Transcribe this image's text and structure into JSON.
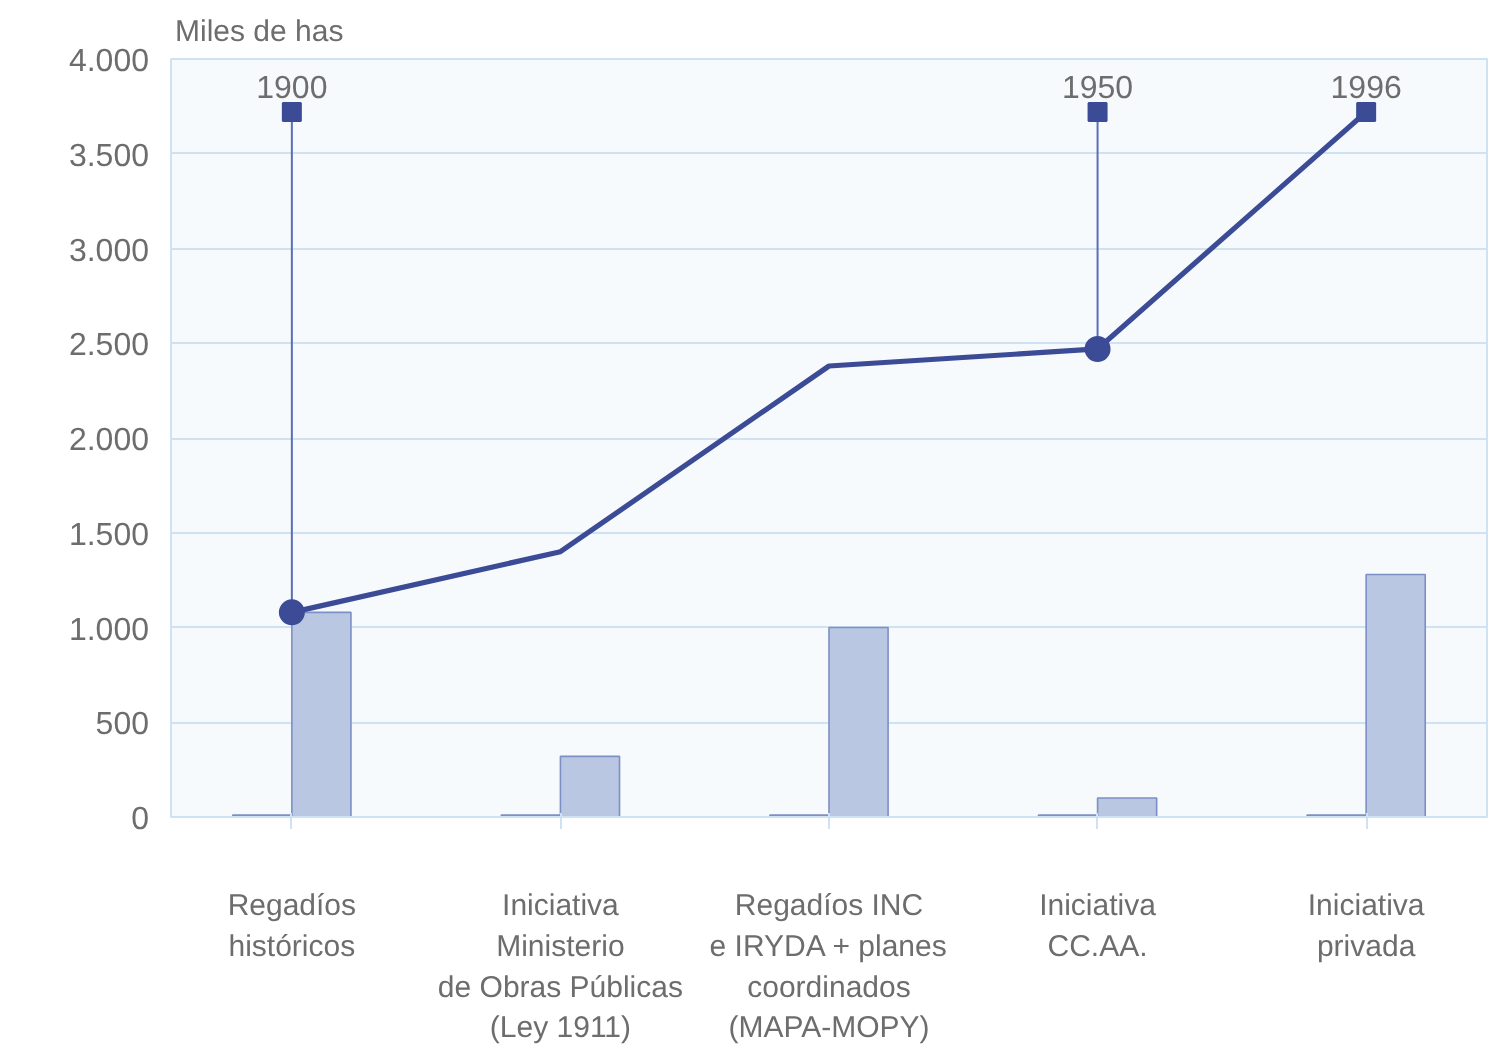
{
  "chart_data": {
    "type": "bar",
    "ylabel": "Miles de has",
    "categories": [
      "Regadíos\nhistóricos",
      "Iniciativa\nMinisterio\nde Obras Públicas\n(Ley 1911)",
      "Regadíos INC\ne IRYDA + planes\ncoordinados\n(MAPA-MOPY)",
      "Iniciativa\nCC.AA.",
      "Iniciativa\nprivada"
    ],
    "series": [
      {
        "color": "#4a5a9e",
        "values": [
          10,
          10,
          10,
          10,
          10
        ]
      },
      {
        "color": "#b9c7e3",
        "values": [
          1080,
          320,
          1000,
          100,
          1280
        ]
      },
      {
        "type": "line",
        "color": "#3c4b95",
        "values": [
          1080,
          1400,
          2380,
          2470,
          3720
        ]
      },
      {
        "type": "line",
        "color": "#5a6fb5",
        "x": [
          "Regadíos\nhistóricos",
          "Regadíos\nhistóricos"
        ],
        "values": [
          1080,
          3720
        ]
      },
      {
        "type": "line",
        "color": "#5a6fb5",
        "x": [
          "Iniciativa\nCC.AA.",
          "Iniciativa\nCC.AA."
        ],
        "values": [
          2470,
          3720
        ]
      },
      {
        "type": "scatter",
        "marker": "circle",
        "color": "#3c4b95",
        "x": [
          "Regadíos\nhistóricos",
          "Iniciativa\nCC.AA."
        ],
        "values": [
          1080,
          2470
        ]
      },
      {
        "type": "scatter",
        "marker": "square",
        "color": "#3c4b95",
        "x": [
          "Regadíos\nhistóricos",
          "Iniciativa\nCC.AA.",
          "Iniciativa\nprivada"
        ],
        "values": [
          3720,
          3720,
          3720
        ]
      }
    ],
    "annotations": [
      {
        "text": "1900",
        "x": "Regadíos\nhistóricos",
        "y": 3720
      },
      {
        "text": "1950",
        "x": "Iniciativa\nCC.AA.",
        "y": 3720
      },
      {
        "text": "1996",
        "x": "Iniciativa\nprivada",
        "y": 3720
      }
    ],
    "ylim": [
      0,
      4000
    ],
    "yticks": [
      0,
      500,
      {
        "value": 1000,
        "label": "1.000"
      },
      {
        "value": 1500,
        "label": "1.500"
      },
      {
        "value": 2000,
        "label": "2.000"
      },
      {
        "value": 2500,
        "label": "2.500"
      },
      {
        "value": 3000,
        "label": "3.000"
      },
      {
        "value": 3500,
        "label": "3.500"
      },
      {
        "value": 4000,
        "label": "4.000"
      }
    ],
    "grid": "y"
  }
}
